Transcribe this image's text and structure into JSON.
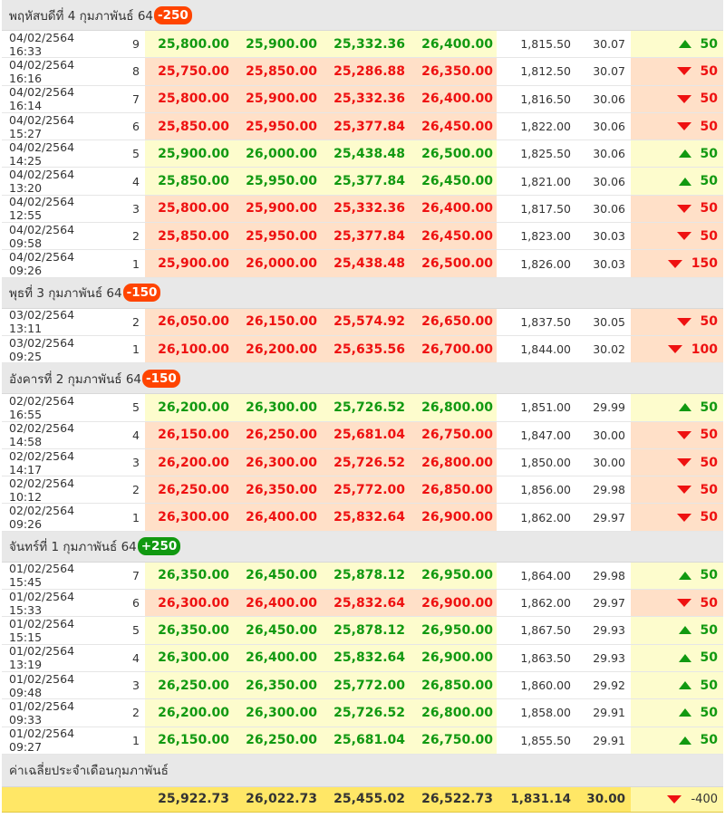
{
  "groups": [
    {
      "title": "พฤหัสบดีที่ 4 กุมภาพันธ์ 64",
      "badge": "-250",
      "badge_dir": "down",
      "rows": [
        {
          "time": "04/02/2564 16:33",
          "seq": "9",
          "bar_buy": "25,800.00",
          "bar_sell": "25,900.00",
          "orn_buy": "25,332.36",
          "orn_sell": "26,400.00",
          "gold": "1,815.50",
          "thb": "30.07",
          "change": "50",
          "dir": "up"
        },
        {
          "time": "04/02/2564 16:16",
          "seq": "8",
          "bar_buy": "25,750.00",
          "bar_sell": "25,850.00",
          "orn_buy": "25,286.88",
          "orn_sell": "26,350.00",
          "gold": "1,812.50",
          "thb": "30.07",
          "change": "50",
          "dir": "down"
        },
        {
          "time": "04/02/2564 16:14",
          "seq": "7",
          "bar_buy": "25,800.00",
          "bar_sell": "25,900.00",
          "orn_buy": "25,332.36",
          "orn_sell": "26,400.00",
          "gold": "1,816.50",
          "thb": "30.06",
          "change": "50",
          "dir": "down"
        },
        {
          "time": "04/02/2564 15:27",
          "seq": "6",
          "bar_buy": "25,850.00",
          "bar_sell": "25,950.00",
          "orn_buy": "25,377.84",
          "orn_sell": "26,450.00",
          "gold": "1,822.00",
          "thb": "30.06",
          "change": "50",
          "dir": "down"
        },
        {
          "time": "04/02/2564 14:25",
          "seq": "5",
          "bar_buy": "25,900.00",
          "bar_sell": "26,000.00",
          "orn_buy": "25,438.48",
          "orn_sell": "26,500.00",
          "gold": "1,825.50",
          "thb": "30.06",
          "change": "50",
          "dir": "up"
        },
        {
          "time": "04/02/2564 13:20",
          "seq": "4",
          "bar_buy": "25,850.00",
          "bar_sell": "25,950.00",
          "orn_buy": "25,377.84",
          "orn_sell": "26,450.00",
          "gold": "1,821.00",
          "thb": "30.06",
          "change": "50",
          "dir": "up"
        },
        {
          "time": "04/02/2564 12:55",
          "seq": "3",
          "bar_buy": "25,800.00",
          "bar_sell": "25,900.00",
          "orn_buy": "25,332.36",
          "orn_sell": "26,400.00",
          "gold": "1,817.50",
          "thb": "30.06",
          "change": "50",
          "dir": "down"
        },
        {
          "time": "04/02/2564 09:58",
          "seq": "2",
          "bar_buy": "25,850.00",
          "bar_sell": "25,950.00",
          "orn_buy": "25,377.84",
          "orn_sell": "26,450.00",
          "gold": "1,823.00",
          "thb": "30.03",
          "change": "50",
          "dir": "down"
        },
        {
          "time": "04/02/2564 09:26",
          "seq": "1",
          "bar_buy": "25,900.00",
          "bar_sell": "26,000.00",
          "orn_buy": "25,438.48",
          "orn_sell": "26,500.00",
          "gold": "1,826.00",
          "thb": "30.03",
          "change": "150",
          "dir": "down"
        }
      ]
    },
    {
      "title": "พุธที่ 3 กุมภาพันธ์ 64",
      "badge": "-150",
      "badge_dir": "down",
      "rows": [
        {
          "time": "03/02/2564 13:11",
          "seq": "2",
          "bar_buy": "26,050.00",
          "bar_sell": "26,150.00",
          "orn_buy": "25,574.92",
          "orn_sell": "26,650.00",
          "gold": "1,837.50",
          "thb": "30.05",
          "change": "50",
          "dir": "down"
        },
        {
          "time": "03/02/2564 09:25",
          "seq": "1",
          "bar_buy": "26,100.00",
          "bar_sell": "26,200.00",
          "orn_buy": "25,635.56",
          "orn_sell": "26,700.00",
          "gold": "1,844.00",
          "thb": "30.02",
          "change": "100",
          "dir": "down"
        }
      ]
    },
    {
      "title": "อังคารที่ 2 กุมภาพันธ์ 64",
      "badge": "-150",
      "badge_dir": "down",
      "rows": [
        {
          "time": "02/02/2564 16:55",
          "seq": "5",
          "bar_buy": "26,200.00",
          "bar_sell": "26,300.00",
          "orn_buy": "25,726.52",
          "orn_sell": "26,800.00",
          "gold": "1,851.00",
          "thb": "29.99",
          "change": "50",
          "dir": "up"
        },
        {
          "time": "02/02/2564 14:58",
          "seq": "4",
          "bar_buy": "26,150.00",
          "bar_sell": "26,250.00",
          "orn_buy": "25,681.04",
          "orn_sell": "26,750.00",
          "gold": "1,847.00",
          "thb": "30.00",
          "change": "50",
          "dir": "down"
        },
        {
          "time": "02/02/2564 14:17",
          "seq": "3",
          "bar_buy": "26,200.00",
          "bar_sell": "26,300.00",
          "orn_buy": "25,726.52",
          "orn_sell": "26,800.00",
          "gold": "1,850.00",
          "thb": "30.00",
          "change": "50",
          "dir": "down"
        },
        {
          "time": "02/02/2564 10:12",
          "seq": "2",
          "bar_buy": "26,250.00",
          "bar_sell": "26,350.00",
          "orn_buy": "25,772.00",
          "orn_sell": "26,850.00",
          "gold": "1,856.00",
          "thb": "29.98",
          "change": "50",
          "dir": "down"
        },
        {
          "time": "02/02/2564 09:26",
          "seq": "1",
          "bar_buy": "26,300.00",
          "bar_sell": "26,400.00",
          "orn_buy": "25,832.64",
          "orn_sell": "26,900.00",
          "gold": "1,862.00",
          "thb": "29.97",
          "change": "50",
          "dir": "down"
        }
      ]
    },
    {
      "title": "จันทร์ที่ 1 กุมภาพันธ์ 64",
      "badge": "+250",
      "badge_dir": "up",
      "rows": [
        {
          "time": "01/02/2564 15:45",
          "seq": "7",
          "bar_buy": "26,350.00",
          "bar_sell": "26,450.00",
          "orn_buy": "25,878.12",
          "orn_sell": "26,950.00",
          "gold": "1,864.00",
          "thb": "29.98",
          "change": "50",
          "dir": "up"
        },
        {
          "time": "01/02/2564 15:33",
          "seq": "6",
          "bar_buy": "26,300.00",
          "bar_sell": "26,400.00",
          "orn_buy": "25,832.64",
          "orn_sell": "26,900.00",
          "gold": "1,862.00",
          "thb": "29.97",
          "change": "50",
          "dir": "down"
        },
        {
          "time": "01/02/2564 15:15",
          "seq": "5",
          "bar_buy": "26,350.00",
          "bar_sell": "26,450.00",
          "orn_buy": "25,878.12",
          "orn_sell": "26,950.00",
          "gold": "1,867.50",
          "thb": "29.93",
          "change": "50",
          "dir": "up"
        },
        {
          "time": "01/02/2564 13:19",
          "seq": "4",
          "bar_buy": "26,300.00",
          "bar_sell": "26,400.00",
          "orn_buy": "25,832.64",
          "orn_sell": "26,900.00",
          "gold": "1,863.50",
          "thb": "29.93",
          "change": "50",
          "dir": "up"
        },
        {
          "time": "01/02/2564 09:48",
          "seq": "3",
          "bar_buy": "26,250.00",
          "bar_sell": "26,350.00",
          "orn_buy": "25,772.00",
          "orn_sell": "26,850.00",
          "gold": "1,860.00",
          "thb": "29.92",
          "change": "50",
          "dir": "up"
        },
        {
          "time": "01/02/2564 09:33",
          "seq": "2",
          "bar_buy": "26,200.00",
          "bar_sell": "26,300.00",
          "orn_buy": "25,726.52",
          "orn_sell": "26,800.00",
          "gold": "1,858.00",
          "thb": "29.91",
          "change": "50",
          "dir": "up"
        },
        {
          "time": "01/02/2564 09:27",
          "seq": "1",
          "bar_buy": "26,150.00",
          "bar_sell": "26,250.00",
          "orn_buy": "25,681.04",
          "orn_sell": "26,750.00",
          "gold": "1,855.50",
          "thb": "29.91",
          "change": "50",
          "dir": "up"
        }
      ]
    }
  ],
  "summary": {
    "title": "ค่าเฉลี่ยประจำเดือนกุมภาพันธ์",
    "bar_buy": "25,922.73",
    "bar_sell": "26,022.73",
    "orn_buy": "25,455.02",
    "orn_sell": "26,522.73",
    "gold": "1,831.14",
    "thb": "30.00",
    "change": "-400",
    "dir": "down"
  },
  "colors": {
    "up": "#119911",
    "down": "#ee1111",
    "badge_down": "#ff4400",
    "badge_up": "#119911",
    "up_bg": "#fdfccd",
    "down_bg": "#ffe0c8",
    "summary_bg": "#ffe766"
  }
}
